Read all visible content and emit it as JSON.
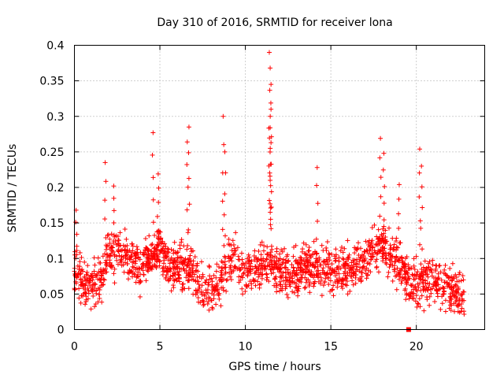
{
  "chart_data": {
    "type": "scatter",
    "title": "Day 310 of 2016, SRMTID for receiver lona",
    "xlabel": "GPS time / hours",
    "ylabel": "SRMTID / TECUs",
    "xlim": [
      0,
      24
    ],
    "ylim": [
      0,
      0.4
    ],
    "x_ticks": [
      0,
      5,
      10,
      15,
      20
    ],
    "x_tick_labels": [
      "0",
      "5",
      "10",
      "15",
      "20"
    ],
    "y_ticks": [
      0,
      0.05,
      0.1,
      0.15,
      0.2,
      0.25,
      0.3,
      0.35,
      0.4
    ],
    "y_tick_labels": [
      "0",
      "0.05",
      "0.1",
      "0.15",
      "0.2",
      "0.25",
      "0.3",
      "0.35",
      "0.4"
    ],
    "grid": true,
    "marker": "+",
    "color": "#ff0000",
    "series": [
      {
        "name": "SRMTID",
        "profile_x": [
          0.0,
          0.5,
          1.0,
          1.5,
          2.0,
          2.5,
          3.0,
          3.5,
          4.0,
          4.5,
          5.0,
          5.5,
          6.0,
          6.5,
          7.0,
          7.5,
          8.0,
          8.5,
          9.0,
          9.5,
          10.0,
          10.5,
          11.0,
          11.5,
          12.0,
          12.5,
          13.0,
          13.5,
          14.0,
          14.5,
          15.0,
          15.5,
          16.0,
          16.5,
          17.0,
          17.5,
          18.0,
          18.5,
          19.0,
          19.5,
          20.0,
          20.5,
          21.0,
          21.5,
          22.0,
          22.5,
          22.8
        ],
        "profile_y": [
          0.075,
          0.07,
          0.065,
          0.07,
          0.1,
          0.11,
          0.1,
          0.095,
          0.09,
          0.1,
          0.11,
          0.09,
          0.085,
          0.09,
          0.075,
          0.06,
          0.055,
          0.065,
          0.1,
          0.095,
          0.08,
          0.085,
          0.09,
          0.095,
          0.08,
          0.075,
          0.08,
          0.085,
          0.09,
          0.085,
          0.08,
          0.085,
          0.085,
          0.09,
          0.1,
          0.105,
          0.12,
          0.11,
          0.09,
          0.07,
          0.065,
          0.07,
          0.075,
          0.065,
          0.055,
          0.05,
          0.045
        ],
        "spikes": [
          {
            "x": 0.1,
            "y": 0.168
          },
          {
            "x": 1.8,
            "y": 0.235
          },
          {
            "x": 2.3,
            "y": 0.202
          },
          {
            "x": 4.6,
            "y": 0.277
          },
          {
            "x": 4.9,
            "y": 0.219
          },
          {
            "x": 6.7,
            "y": 0.285
          },
          {
            "x": 6.6,
            "y": 0.264
          },
          {
            "x": 8.7,
            "y": 0.3
          },
          {
            "x": 8.8,
            "y": 0.25
          },
          {
            "x": 11.4,
            "y": 0.39
          },
          {
            "x": 11.45,
            "y": 0.368
          },
          {
            "x": 11.5,
            "y": 0.345
          },
          {
            "x": 11.5,
            "y": 0.31
          },
          {
            "x": 11.45,
            "y": 0.284
          },
          {
            "x": 11.5,
            "y": 0.263
          },
          {
            "x": 14.2,
            "y": 0.228
          },
          {
            "x": 17.9,
            "y": 0.269
          },
          {
            "x": 18.1,
            "y": 0.248
          },
          {
            "x": 19.0,
            "y": 0.204
          },
          {
            "x": 20.2,
            "y": 0.254
          },
          {
            "x": 20.3,
            "y": 0.23
          }
        ],
        "square_points": [
          {
            "x": 19.55,
            "y": 0.0
          }
        ],
        "points_per_hour": 80,
        "x_end": 22.8
      }
    ]
  }
}
